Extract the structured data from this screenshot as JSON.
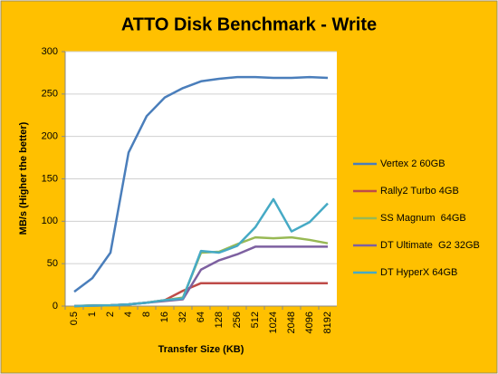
{
  "chart_data": {
    "type": "line",
    "title": "ATTO Disk Benchmark - Write",
    "x_label": "Transfer Size (KB)",
    "y_label": "MB/s (Higher the better)",
    "categories": [
      "0.5",
      "1",
      "2",
      "4",
      "8",
      "16",
      "32",
      "64",
      "128",
      "256",
      "512",
      "1024",
      "2048",
      "4096",
      "8192"
    ],
    "series": [
      {
        "name": "Vertex 2 60GB",
        "color": "#4a7ebb",
        "values": [
          17,
          33,
          63,
          181,
          224,
          246,
          257,
          265,
          268,
          270,
          270,
          269,
          269,
          270,
          269
        ]
      },
      {
        "name": "Rally2 Turbo 4GB",
        "color": "#be4b48",
        "values": [
          0,
          0.5,
          1,
          2,
          4,
          7,
          18,
          27,
          27,
          27,
          27,
          27,
          27,
          27,
          27
        ]
      },
      {
        "name": "SS Magnum  64GB",
        "color": "#98b954",
        "values": [
          0,
          1,
          1,
          2,
          4,
          7,
          10,
          63,
          64,
          73,
          81,
          80,
          81,
          78,
          74
        ]
      },
      {
        "name": "DT Ultimate  G2 32GB",
        "color": "#7d60a0",
        "values": [
          0,
          0.5,
          1,
          2,
          4,
          6,
          8,
          43,
          54,
          61,
          70,
          70,
          70,
          70,
          70
        ]
      },
      {
        "name": "DT HyperX 64GB",
        "color": "#46aac5",
        "values": [
          0,
          0.5,
          1,
          2,
          4,
          7,
          9,
          65,
          63,
          71,
          93,
          126,
          88,
          99,
          121
        ]
      }
    ],
    "ylim": [
      0,
      300
    ],
    "yticks": [
      0,
      50,
      100,
      150,
      200,
      250,
      300
    ],
    "grid": true,
    "legend": "right"
  }
}
